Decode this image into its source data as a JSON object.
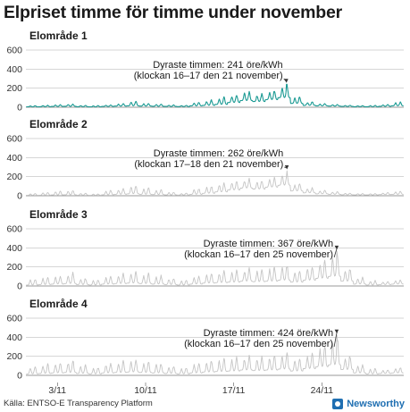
{
  "title": "Elpriset timme för timme under november",
  "source": "Källa: ENTSO-E Transparency Platform",
  "brand": "Newsworthy",
  "colors": {
    "highlight": "#1a9a93",
    "muted": "#c4c4c4",
    "grid": "#d6d6d6",
    "brand": "#1f6fb2"
  },
  "chart_data": {
    "type": "line",
    "x_axis": {
      "range": [
        "2022-11-01",
        "2022-11-30"
      ],
      "ticks": [
        "2022-11-03",
        "2022-11-10",
        "2022-11-17",
        "2022-11-24"
      ],
      "tick_labels": [
        "3/11",
        "10/11",
        "17/11",
        "24/11"
      ]
    },
    "y_axis": {
      "ylim": [
        0,
        600
      ],
      "ticks": [
        0,
        200,
        400,
        600
      ]
    },
    "grid": true,
    "panels": [
      {
        "title": "Elområde 1",
        "highlighted": true,
        "annotation_lines": [
          "Dyraste timmen: 241 öre/kWh",
          "(klockan 16–17 den 21 november)"
        ],
        "peak": {
          "date": "2022-11-21",
          "hour": 16,
          "value": 241
        },
        "series": [
          {
            "day": 1,
            "min": 5,
            "max": 18
          },
          {
            "day": 2,
            "min": 6,
            "max": 22
          },
          {
            "day": 3,
            "min": 8,
            "max": 30
          },
          {
            "day": 4,
            "min": 10,
            "max": 35
          },
          {
            "day": 5,
            "min": 6,
            "max": 20
          },
          {
            "day": 6,
            "min": 5,
            "max": 18
          },
          {
            "day": 7,
            "min": 8,
            "max": 25
          },
          {
            "day": 8,
            "min": 12,
            "max": 40
          },
          {
            "day": 9,
            "min": 15,
            "max": 70
          },
          {
            "day": 10,
            "min": 12,
            "max": 45
          },
          {
            "day": 11,
            "min": 10,
            "max": 35
          },
          {
            "day": 12,
            "min": 8,
            "max": 25
          },
          {
            "day": 13,
            "min": 7,
            "max": 20
          },
          {
            "day": 14,
            "min": 15,
            "max": 55
          },
          {
            "day": 15,
            "min": 20,
            "max": 80
          },
          {
            "day": 16,
            "min": 30,
            "max": 110
          },
          {
            "day": 17,
            "min": 50,
            "max": 140
          },
          {
            "day": 18,
            "min": 70,
            "max": 170
          },
          {
            "day": 19,
            "min": 60,
            "max": 150
          },
          {
            "day": 20,
            "min": 80,
            "max": 190
          },
          {
            "day": 21,
            "min": 100,
            "max": 241
          },
          {
            "day": 22,
            "min": 40,
            "max": 120
          },
          {
            "day": 23,
            "min": 20,
            "max": 60
          },
          {
            "day": 24,
            "min": 15,
            "max": 40
          },
          {
            "day": 25,
            "min": 12,
            "max": 30
          },
          {
            "day": 26,
            "min": 8,
            "max": 22
          },
          {
            "day": 27,
            "min": 6,
            "max": 18
          },
          {
            "day": 28,
            "min": 6,
            "max": 20
          },
          {
            "day": 29,
            "min": 10,
            "max": 30
          },
          {
            "day": 30,
            "min": 15,
            "max": 60
          }
        ]
      },
      {
        "title": "Elområde 2",
        "highlighted": false,
        "annotation_lines": [
          "Dyraste timmen: 262 öre/kWh",
          "(klockan 17–18 den 21 november)"
        ],
        "peak": {
          "date": "2022-11-21",
          "hour": 17,
          "value": 262
        },
        "series": [
          {
            "day": 1,
            "min": 5,
            "max": 25
          },
          {
            "day": 2,
            "min": 6,
            "max": 40
          },
          {
            "day": 3,
            "min": 8,
            "max": 55
          },
          {
            "day": 4,
            "min": 10,
            "max": 60
          },
          {
            "day": 5,
            "min": 6,
            "max": 30
          },
          {
            "day": 6,
            "min": 5,
            "max": 20
          },
          {
            "day": 7,
            "min": 10,
            "max": 60
          },
          {
            "day": 8,
            "min": 15,
            "max": 80
          },
          {
            "day": 9,
            "min": 20,
            "max": 120
          },
          {
            "day": 10,
            "min": 15,
            "max": 90
          },
          {
            "day": 11,
            "min": 12,
            "max": 70
          },
          {
            "day": 12,
            "min": 8,
            "max": 40
          },
          {
            "day": 13,
            "min": 7,
            "max": 30
          },
          {
            "day": 14,
            "min": 15,
            "max": 80
          },
          {
            "day": 15,
            "min": 25,
            "max": 110
          },
          {
            "day": 16,
            "min": 40,
            "max": 140
          },
          {
            "day": 17,
            "min": 60,
            "max": 160
          },
          {
            "day": 18,
            "min": 80,
            "max": 190
          },
          {
            "day": 19,
            "min": 70,
            "max": 170
          },
          {
            "day": 20,
            "min": 90,
            "max": 200
          },
          {
            "day": 21,
            "min": 110,
            "max": 262
          },
          {
            "day": 22,
            "min": 50,
            "max": 140
          },
          {
            "day": 23,
            "min": 30,
            "max": 90
          },
          {
            "day": 24,
            "min": 20,
            "max": 60
          },
          {
            "day": 25,
            "min": 15,
            "max": 45
          },
          {
            "day": 26,
            "min": 10,
            "max": 30
          },
          {
            "day": 27,
            "min": 8,
            "max": 25
          },
          {
            "day": 28,
            "min": 8,
            "max": 25
          },
          {
            "day": 29,
            "min": 12,
            "max": 35
          },
          {
            "day": 30,
            "min": 15,
            "max": 50
          }
        ]
      },
      {
        "title": "Elområde 3",
        "highlighted": false,
        "annotation_lines": [
          "Dyraste timmen: 367 öre/kWh",
          "(klockan 16–17 den 25 november)"
        ],
        "peak": {
          "date": "2022-11-25",
          "hour": 16,
          "value": 367
        },
        "series": [
          {
            "day": 1,
            "min": 10,
            "max": 80
          },
          {
            "day": 2,
            "min": 15,
            "max": 100
          },
          {
            "day": 3,
            "min": 20,
            "max": 120
          },
          {
            "day": 4,
            "min": 25,
            "max": 150
          },
          {
            "day": 5,
            "min": 15,
            "max": 90
          },
          {
            "day": 6,
            "min": 10,
            "max": 70
          },
          {
            "day": 7,
            "min": 20,
            "max": 110
          },
          {
            "day": 8,
            "min": 25,
            "max": 140
          },
          {
            "day": 9,
            "min": 30,
            "max": 160
          },
          {
            "day": 10,
            "min": 25,
            "max": 140
          },
          {
            "day": 11,
            "min": 20,
            "max": 120
          },
          {
            "day": 12,
            "min": 15,
            "max": 90
          },
          {
            "day": 13,
            "min": 10,
            "max": 70
          },
          {
            "day": 14,
            "min": 20,
            "max": 110
          },
          {
            "day": 15,
            "min": 30,
            "max": 150
          },
          {
            "day": 16,
            "min": 35,
            "max": 170
          },
          {
            "day": 17,
            "min": 40,
            "max": 180
          },
          {
            "day": 18,
            "min": 50,
            "max": 200
          },
          {
            "day": 19,
            "min": 45,
            "max": 190
          },
          {
            "day": 20,
            "min": 50,
            "max": 220
          },
          {
            "day": 21,
            "min": 60,
            "max": 240
          },
          {
            "day": 22,
            "min": 40,
            "max": 180
          },
          {
            "day": 23,
            "min": 60,
            "max": 230
          },
          {
            "day": 24,
            "min": 80,
            "max": 300
          },
          {
            "day": 25,
            "min": 100,
            "max": 367
          },
          {
            "day": 26,
            "min": 50,
            "max": 200
          },
          {
            "day": 27,
            "min": 20,
            "max": 100
          },
          {
            "day": 28,
            "min": 10,
            "max": 60
          },
          {
            "day": 29,
            "min": 15,
            "max": 50
          },
          {
            "day": 30,
            "min": 20,
            "max": 70
          }
        ]
      },
      {
        "title": "Elområde 4",
        "highlighted": false,
        "annotation_lines": [
          "Dyraste timmen: 424 öre/kWh",
          "(klockan 16–17 den 25 november)"
        ],
        "peak": {
          "date": "2022-11-25",
          "hour": 16,
          "value": 424
        },
        "series": [
          {
            "day": 1,
            "min": 15,
            "max": 100
          },
          {
            "day": 2,
            "min": 20,
            "max": 130
          },
          {
            "day": 3,
            "min": 25,
            "max": 150
          },
          {
            "day": 4,
            "min": 30,
            "max": 170
          },
          {
            "day": 5,
            "min": 20,
            "max": 120
          },
          {
            "day": 6,
            "min": 15,
            "max": 90
          },
          {
            "day": 7,
            "min": 25,
            "max": 140
          },
          {
            "day": 8,
            "min": 30,
            "max": 160
          },
          {
            "day": 9,
            "min": 35,
            "max": 180
          },
          {
            "day": 10,
            "min": 30,
            "max": 160
          },
          {
            "day": 11,
            "min": 25,
            "max": 140
          },
          {
            "day": 12,
            "min": 20,
            "max": 110
          },
          {
            "day": 13,
            "min": 15,
            "max": 90
          },
          {
            "day": 14,
            "min": 25,
            "max": 140
          },
          {
            "day": 15,
            "min": 35,
            "max": 170
          },
          {
            "day": 16,
            "min": 40,
            "max": 190
          },
          {
            "day": 17,
            "min": 45,
            "max": 200
          },
          {
            "day": 18,
            "min": 55,
            "max": 220
          },
          {
            "day": 19,
            "min": 50,
            "max": 210
          },
          {
            "day": 20,
            "min": 55,
            "max": 240
          },
          {
            "day": 21,
            "min": 65,
            "max": 260
          },
          {
            "day": 22,
            "min": 45,
            "max": 200
          },
          {
            "day": 23,
            "min": 70,
            "max": 260
          },
          {
            "day": 24,
            "min": 90,
            "max": 340
          },
          {
            "day": 25,
            "min": 110,
            "max": 424
          },
          {
            "day": 26,
            "min": 60,
            "max": 230
          },
          {
            "day": 27,
            "min": 25,
            "max": 120
          },
          {
            "day": 28,
            "min": 15,
            "max": 80
          },
          {
            "day": 29,
            "min": 20,
            "max": 60
          },
          {
            "day": 30,
            "min": 25,
            "max": 90
          }
        ]
      }
    ]
  }
}
